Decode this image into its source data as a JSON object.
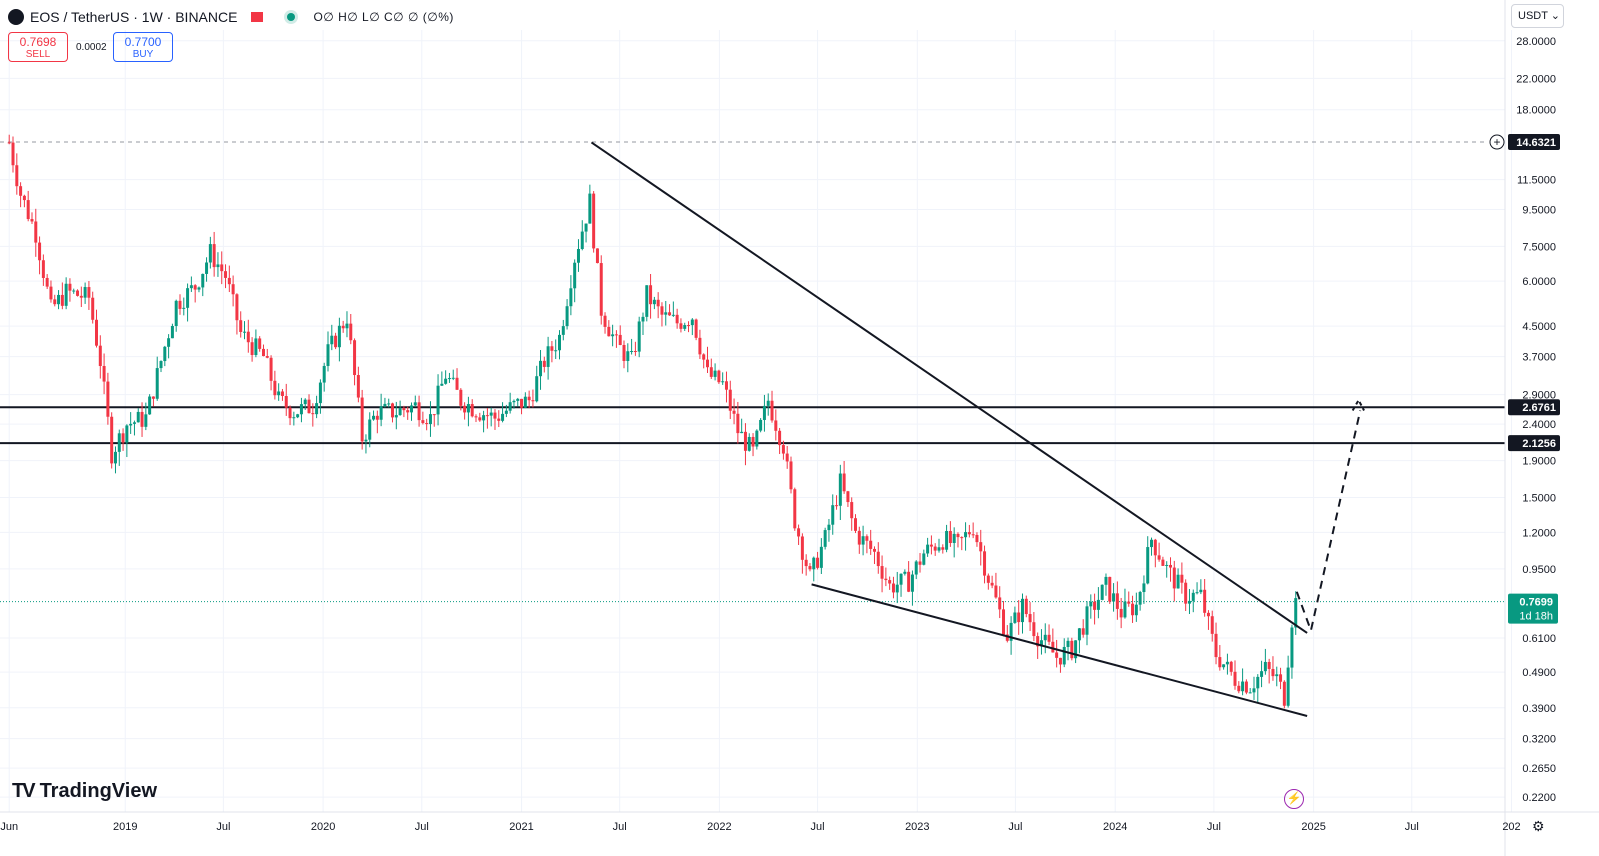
{
  "header": {
    "symbol": "EOS / TetherUS · 1W · BINANCE",
    "ohlc": "O∅ H∅ L∅ C∅ ∅ (∅%)"
  },
  "trade": {
    "sell_price": "0.7698",
    "sell_label": "SELL",
    "spread": "0.0002",
    "buy_price": "0.7700",
    "buy_label": "BUY"
  },
  "currency_button": "USDT ⌄",
  "brand": "TradingView",
  "colors": {
    "up": "#089981",
    "down": "#f23645",
    "line": "#131722"
  },
  "chart_data": {
    "type": "candlestick",
    "scale": "log",
    "ylim": [
      0.2,
      30
    ],
    "xlim": [
      "2018-05-15",
      "2025-12-20"
    ],
    "y_ticks": [
      28,
      22,
      18,
      11.5,
      9.5,
      7.5,
      6,
      4.5,
      3.7,
      2.9,
      2.4,
      1.9,
      1.5,
      1.2,
      0.95,
      0.61,
      0.49,
      0.39,
      0.32,
      0.265,
      0.22
    ],
    "y_tick_labels": [
      "28.0000",
      "22.0000",
      "18.0000",
      "11.5000",
      "9.5000",
      "7.5000",
      "6.0000",
      "4.5000",
      "3.7000",
      "2.9000",
      "2.4000",
      "1.9000",
      "1.5000",
      "1.2000",
      "0.9500",
      "0.6100",
      "0.4900",
      "0.3900",
      "0.3200",
      "0.2650",
      "0.2200"
    ],
    "x_ticks": [
      {
        "date": "2018-06-01",
        "label": "Jun"
      },
      {
        "date": "2019-01-01",
        "label": "2019"
      },
      {
        "date": "2019-07-01",
        "label": "Jul"
      },
      {
        "date": "2020-01-01",
        "label": "2020"
      },
      {
        "date": "2020-07-01",
        "label": "Jul"
      },
      {
        "date": "2021-01-01",
        "label": "2021"
      },
      {
        "date": "2021-07-01",
        "label": "Jul"
      },
      {
        "date": "2022-01-01",
        "label": "2022"
      },
      {
        "date": "2022-07-01",
        "label": "Jul"
      },
      {
        "date": "2023-01-01",
        "label": "2023"
      },
      {
        "date": "2023-07-01",
        "label": "Jul"
      },
      {
        "date": "2024-01-01",
        "label": "2024"
      },
      {
        "date": "2024-07-01",
        "label": "Jul"
      },
      {
        "date": "2025-01-01",
        "label": "2025"
      },
      {
        "date": "2025-07-01",
        "label": "Jul"
      },
      {
        "date": "2026-01-01",
        "label": "202"
      }
    ],
    "price_path": [
      [
        "2018-06-01",
        14.6
      ],
      [
        "2018-06-22",
        10.5
      ],
      [
        "2018-07-20",
        8.2
      ],
      [
        "2018-08-17",
        5.0
      ],
      [
        "2018-09-14",
        5.6
      ],
      [
        "2018-10-26",
        5.4
      ],
      [
        "2018-11-16",
        3.6
      ],
      [
        "2018-12-07",
        2.0
      ],
      [
        "2019-01-04",
        2.4
      ],
      [
        "2019-02-08",
        2.5
      ],
      [
        "2019-03-08",
        3.6
      ],
      [
        "2019-04-05",
        5.2
      ],
      [
        "2019-05-10",
        5.8
      ],
      [
        "2019-06-07",
        7.2
      ],
      [
        "2019-07-05",
        6.2
      ],
      [
        "2019-08-02",
        4.3
      ],
      [
        "2019-09-13",
        3.7
      ],
      [
        "2019-10-11",
        2.8
      ],
      [
        "2019-11-08",
        2.6
      ],
      [
        "2019-12-13",
        2.7
      ],
      [
        "2020-01-10",
        3.8
      ],
      [
        "2020-02-14",
        4.8
      ],
      [
        "2020-03-13",
        2.2
      ],
      [
        "2020-04-10",
        2.6
      ],
      [
        "2020-05-15",
        2.6
      ],
      [
        "2020-06-19",
        2.7
      ],
      [
        "2020-07-17",
        2.5
      ],
      [
        "2020-08-14",
        3.3
      ],
      [
        "2020-09-11",
        2.8
      ],
      [
        "2020-10-16",
        2.6
      ],
      [
        "2020-11-13",
        2.5
      ],
      [
        "2020-12-18",
        2.7
      ],
      [
        "2021-01-15",
        2.8
      ],
      [
        "2021-02-12",
        3.6
      ],
      [
        "2021-03-12",
        4.2
      ],
      [
        "2021-04-09",
        7.0
      ],
      [
        "2021-05-07",
        10.0
      ],
      [
        "2021-05-28",
        5.0
      ],
      [
        "2021-06-25",
        4.0
      ],
      [
        "2021-07-23",
        3.6
      ],
      [
        "2021-08-20",
        5.5
      ],
      [
        "2021-09-17",
        4.8
      ],
      [
        "2021-10-15",
        4.6
      ],
      [
        "2021-11-12",
        4.8
      ],
      [
        "2021-12-10",
        3.3
      ],
      [
        "2022-01-07",
        3.1
      ],
      [
        "2022-02-04",
        2.3
      ],
      [
        "2022-03-04",
        2.0
      ],
      [
        "2022-04-01",
        2.8
      ],
      [
        "2022-04-29",
        2.1
      ],
      [
        "2022-05-20",
        1.3
      ],
      [
        "2022-06-17",
        0.9
      ],
      [
        "2022-07-15",
        1.15
      ],
      [
        "2022-08-12",
        1.65
      ],
      [
        "2022-09-09",
        1.2
      ],
      [
        "2022-10-14",
        1.05
      ],
      [
        "2022-11-11",
        0.85
      ],
      [
        "2022-12-16",
        0.88
      ],
      [
        "2023-01-13",
        1.05
      ],
      [
        "2023-02-17",
        1.15
      ],
      [
        "2023-03-17",
        1.1
      ],
      [
        "2023-04-14",
        1.25
      ],
      [
        "2023-05-12",
        0.9
      ],
      [
        "2023-06-16",
        0.62
      ],
      [
        "2023-07-14",
        0.75
      ],
      [
        "2023-08-11",
        0.62
      ],
      [
        "2023-09-15",
        0.54
      ],
      [
        "2023-10-13",
        0.57
      ],
      [
        "2023-11-10",
        0.7
      ],
      [
        "2023-12-15",
        0.85
      ],
      [
        "2024-01-12",
        0.72
      ],
      [
        "2024-02-09",
        0.75
      ],
      [
        "2024-03-08",
        1.15
      ],
      [
        "2024-04-05",
        0.95
      ],
      [
        "2024-05-10",
        0.8
      ],
      [
        "2024-06-07",
        0.8
      ],
      [
        "2024-07-05",
        0.55
      ],
      [
        "2024-08-09",
        0.47
      ],
      [
        "2024-09-06",
        0.45
      ],
      [
        "2024-10-04",
        0.5
      ],
      [
        "2024-10-25",
        0.47
      ],
      [
        "2024-11-08",
        0.42
      ],
      [
        "2024-11-22",
        0.69
      ],
      [
        "2024-11-29",
        0.77
      ]
    ],
    "trend_lines": [
      {
        "from": [
          "2021-05-10",
          14.6
        ],
        "to": [
          "2024-12-20",
          0.63
        ]
      },
      {
        "from": [
          "2022-06-20",
          0.86
        ],
        "to": [
          "2024-12-20",
          0.37
        ]
      }
    ],
    "projection": [
      [
        "2024-12-01",
        0.82
      ],
      [
        "2024-12-27",
        0.64
      ],
      [
        "2025-03-28",
        2.62
      ]
    ],
    "projection_arrowhead": [
      [
        "2025-03-14",
        2.62
      ],
      [
        "2025-03-25",
        2.8
      ],
      [
        "2025-04-04",
        2.62
      ]
    ],
    "horizontal_levels": [
      {
        "price": 2.6761,
        "label": "2.6761",
        "style": "solid"
      },
      {
        "price": 2.1256,
        "label": "2.1256",
        "style": "solid"
      },
      {
        "price": 14.6321,
        "label": "14.6321",
        "style": "dashed"
      }
    ],
    "last_price": {
      "price": 0.7699,
      "label": "0.7699",
      "countdown": "1d 18h"
    }
  }
}
